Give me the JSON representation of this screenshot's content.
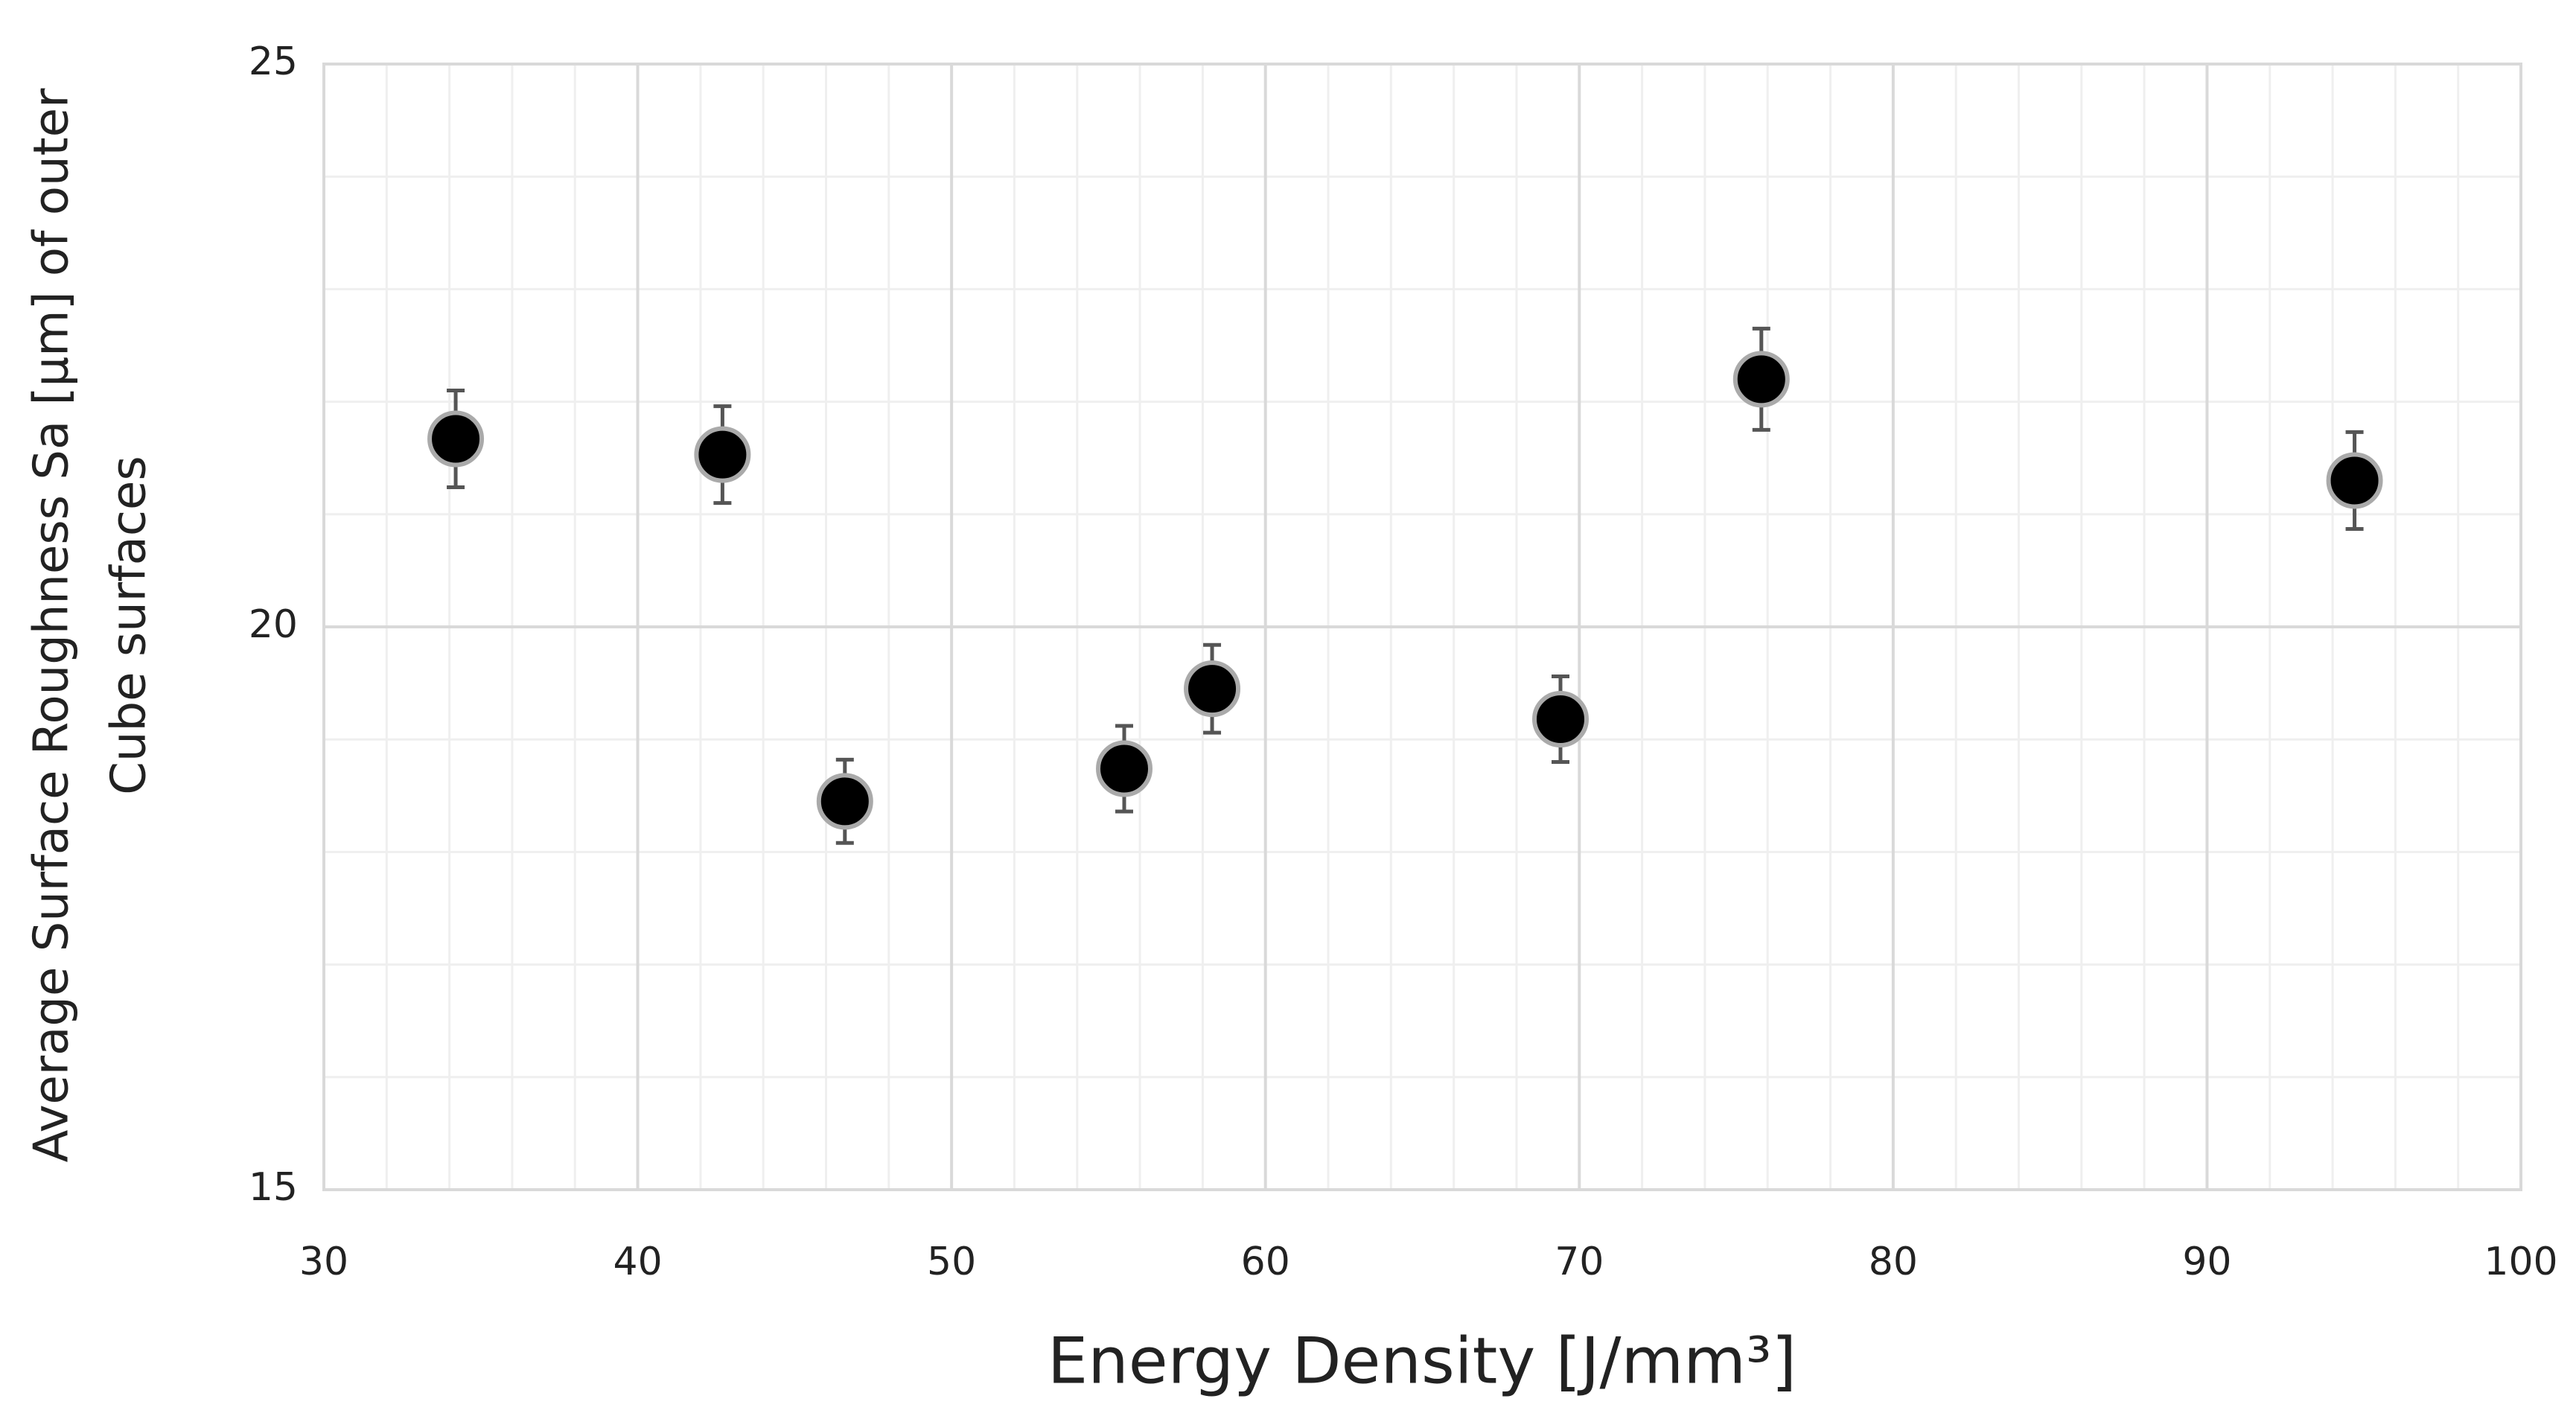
{
  "chart_data": {
    "type": "scatter",
    "x_label": "Energy Density [J/mm³]",
    "y_label": [
      "Average Surface Roughness Sa [µm] of outer",
      "Cube surfaces"
    ],
    "series": [
      {
        "color": "#000000",
        "x": [
          34.2,
          42.7,
          46.6,
          55.5,
          58.3,
          69.4,
          75.8,
          94.7
        ],
        "values": [
          21.67,
          21.53,
          18.45,
          18.74,
          19.45,
          19.18,
          22.2,
          21.3
        ],
        "errors": [
          0.43,
          0.43,
          0.37,
          0.38,
          0.39,
          0.38,
          0.45,
          0.43
        ]
      }
    ],
    "xlim": [
      30,
      100
    ],
    "xticks": [
      30,
      40,
      50,
      60,
      70,
      80,
      90,
      100
    ],
    "ylim": [
      15,
      25
    ],
    "yticks": [
      15,
      20,
      25
    ],
    "grid": true,
    "minor_grid": true
  }
}
